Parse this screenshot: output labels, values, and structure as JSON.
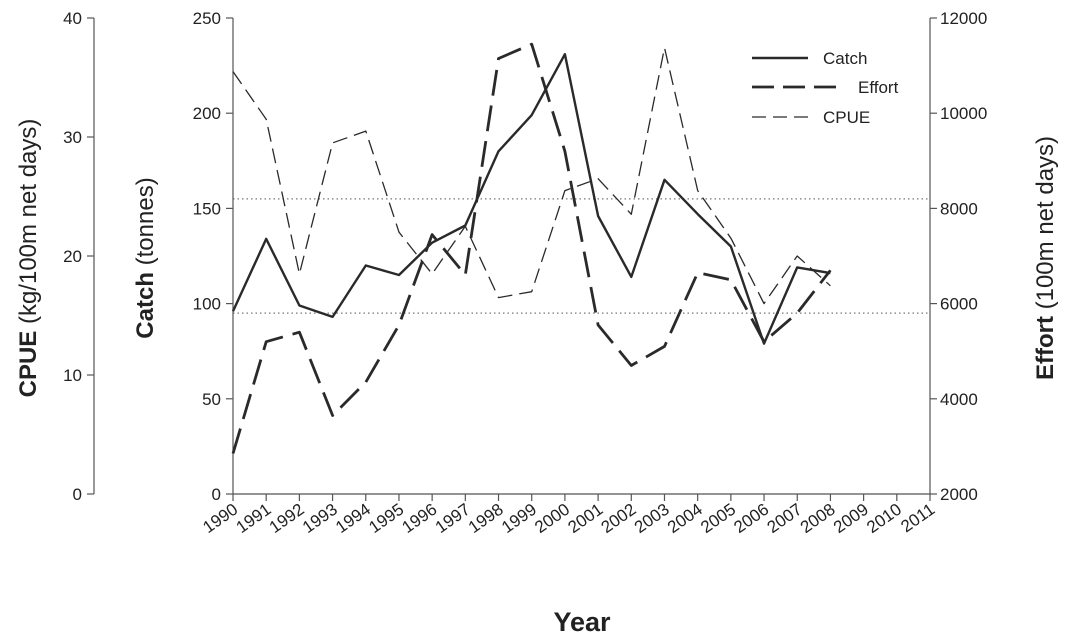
{
  "chart_data": {
    "type": "line",
    "title": "",
    "xlabel": "Year",
    "categories": [
      "1990",
      "1991",
      "1992",
      "1993",
      "1994",
      "1995",
      "1996",
      "1997",
      "1998",
      "1999",
      "2000",
      "2001",
      "2002",
      "2003",
      "2004",
      "2005",
      "2006",
      "2007",
      "2008",
      "2009",
      "2010",
      "2011"
    ],
    "axes": {
      "catch": {
        "label_bold": "Catch",
        "label_rest": " (tonnes)",
        "ylim": [
          0,
          250
        ],
        "ticks": [
          0,
          50,
          100,
          150,
          200,
          250
        ]
      },
      "cpue": {
        "label_bold": "CPUE",
        "label_rest": " (kg/100m net days)",
        "ylim": [
          0,
          40
        ],
        "ticks": [
          0,
          10,
          20,
          30,
          40
        ]
      },
      "effort": {
        "label_bold": "Effort",
        "label_rest": " (100m net days)",
        "ylim": [
          2000,
          12000
        ],
        "ticks": [
          2000,
          4000,
          6000,
          8000,
          10000,
          12000
        ]
      }
    },
    "series": [
      {
        "name": "Catch",
        "axis": "catch",
        "style": "solid",
        "values": [
          96,
          134,
          99,
          93,
          120,
          115,
          132,
          141,
          180,
          199,
          231,
          146,
          114,
          165,
          147,
          130,
          79,
          119,
          116,
          null,
          null,
          null
        ]
      },
      {
        "name": "Effort",
        "axis": "effort",
        "style": "long-dash",
        "values": [
          2850,
          5200,
          5400,
          3650,
          4350,
          5550,
          7450,
          6600,
          11150,
          11450,
          9200,
          5550,
          4700,
          5100,
          6650,
          6500,
          5200,
          5800,
          6700,
          null,
          null,
          null
        ]
      },
      {
        "name": "CPUE",
        "axis": "cpue",
        "style": "short-dash",
        "values": [
          35.5,
          31.5,
          18.5,
          29.5,
          30.5,
          22,
          18.5,
          22.5,
          16.5,
          17,
          25.5,
          26.5,
          23.5,
          37.5,
          25.5,
          21.5,
          16,
          20,
          17.5,
          null,
          null,
          null
        ]
      }
    ],
    "reference_lines": {
      "axis": "catch",
      "values": [
        155,
        95
      ],
      "style": "dotted"
    },
    "legend": {
      "placement": "top-right",
      "entries": [
        "Catch",
        "Effort",
        "CPUE"
      ]
    },
    "grid": false,
    "colors": {
      "line": "#2a2a2a",
      "axis": "#555555",
      "reference": "#777777"
    }
  }
}
